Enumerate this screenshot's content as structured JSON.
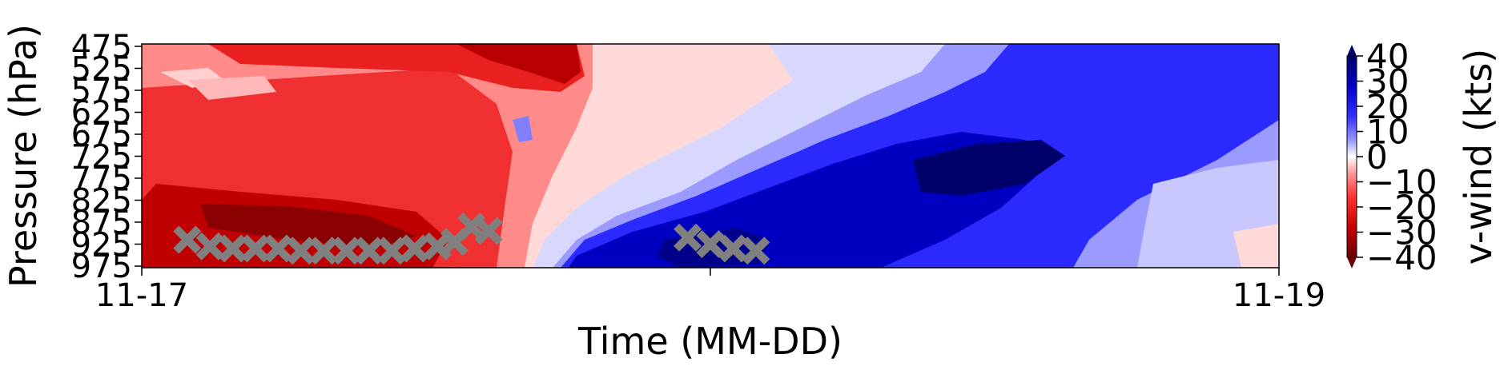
{
  "chart_data": {
    "type": "heatmap",
    "subtype": "filled-contour time-pressure cross-section",
    "title": "",
    "xlabel": "Time (MM-DD)",
    "ylabel": "Pressure (hPa)",
    "colorbar_label": "v-wind (kts)",
    "x_tick_labels": [
      "11-17",
      "",
      "11-19"
    ],
    "x_range": [
      "11-17",
      "11-19"
    ],
    "y_ticks": [
      475,
      525,
      575,
      625,
      675,
      725,
      775,
      825,
      875,
      925,
      975
    ],
    "y_range": [
      475,
      975
    ],
    "y_inverted": true,
    "colorbar_ticks": [
      40,
      30,
      20,
      10,
      0,
      -10,
      -20,
      -30,
      -40
    ],
    "colorbar_range": [
      -40,
      40
    ],
    "colorbar_extend": "both",
    "colormap": "seismic_r (red = negative / northerly, blue = positive / southerly)",
    "colors": {
      "neg_strong": "#8b0000",
      "neg_mid": "#e60000",
      "neg_weak": "#ffb0b0",
      "zero": "#ffffff",
      "pos_weak": "#b0b0ff",
      "pos_mid": "#0000e6",
      "pos_strong": "#00008b",
      "marker": "#808080"
    },
    "markers": {
      "symbol": "X",
      "color": "#808080",
      "groups": [
        {
          "points": [
            {
              "t": 0.04,
              "p": 915
            },
            {
              "t": 0.06,
              "p": 930
            },
            {
              "t": 0.08,
              "p": 935
            },
            {
              "t": 0.1,
              "p": 935
            },
            {
              "t": 0.12,
              "p": 935
            },
            {
              "t": 0.14,
              "p": 940
            },
            {
              "t": 0.16,
              "p": 940
            },
            {
              "t": 0.18,
              "p": 940
            },
            {
              "t": 0.2,
              "p": 940
            },
            {
              "t": 0.22,
              "p": 940
            },
            {
              "t": 0.24,
              "p": 935
            },
            {
              "t": 0.26,
              "p": 930
            },
            {
              "t": 0.275,
              "p": 920
            },
            {
              "t": 0.29,
              "p": 885
            },
            {
              "t": 0.305,
              "p": 895
            }
          ]
        },
        {
          "points": [
            {
              "t": 0.48,
              "p": 910
            },
            {
              "t": 0.5,
              "p": 925
            },
            {
              "t": 0.52,
              "p": 935
            },
            {
              "t": 0.54,
              "p": 940
            }
          ]
        }
      ]
    },
    "field_description": [
      {
        "time_range": [
          0.0,
          0.35
        ],
        "value": -25
      },
      {
        "time_range": [
          0.35,
          0.45
        ],
        "value": -5
      },
      {
        "time_range": [
          0.45,
          0.75
        ],
        "value": 30
      },
      {
        "time_range": [
          0.75,
          1.0
        ],
        "value": 10
      }
    ]
  }
}
